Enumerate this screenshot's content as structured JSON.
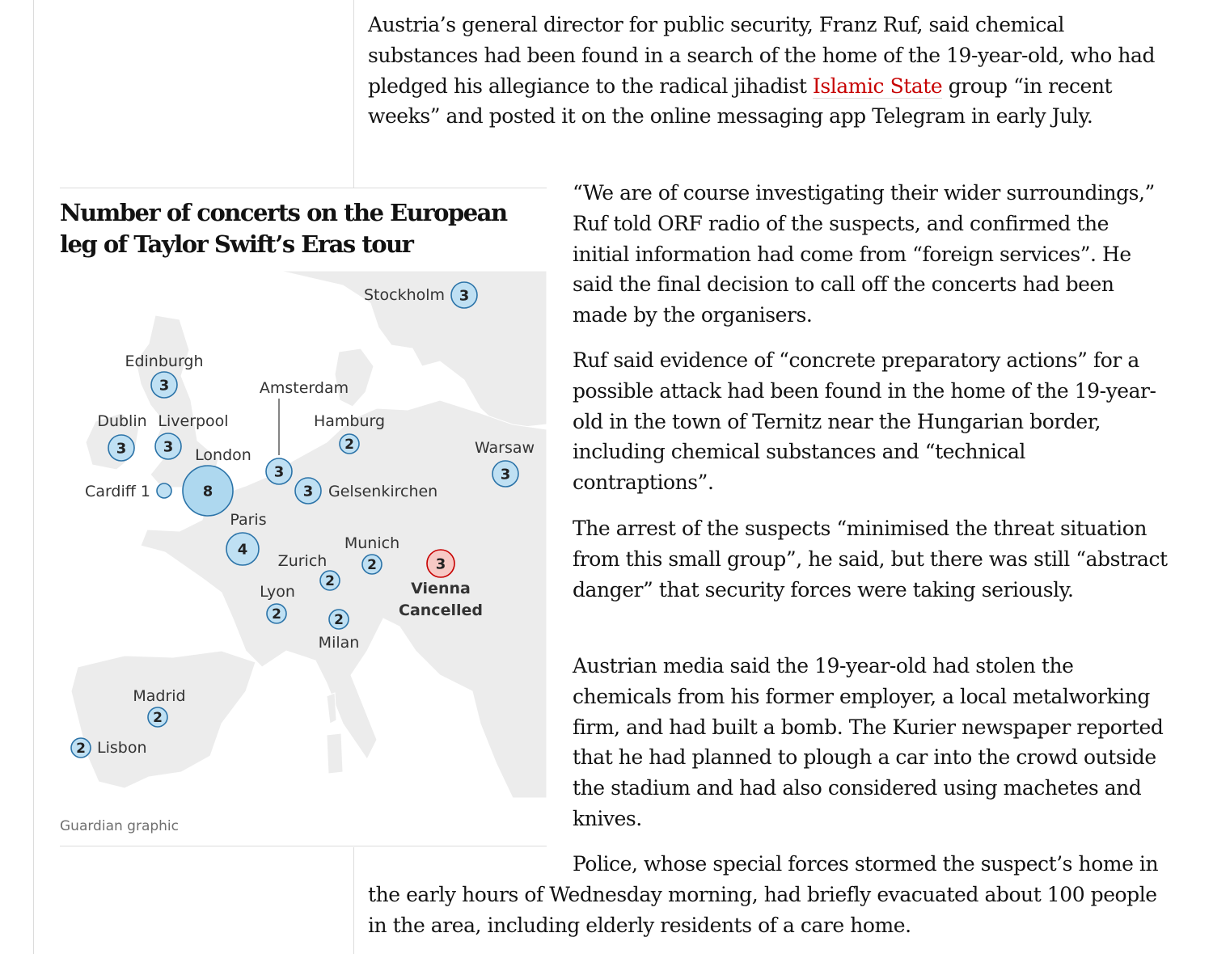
{
  "article": {
    "p1_a": "Austria’s general director for public security, Franz Ruf, said chemical substances had been found in a search of the home of the 19-year-old, who had pledged his allegiance to the radical jihadist ",
    "p1_link": "Islamic State",
    "p1_b": " group “in recent weeks” and posted it on the online messaging app Telegram in early July.",
    "p2": "“We are of course investigating their wider surroundings,” Ruf told ORF radio of the suspects, and confirmed the initial information had come from “foreign services”. He said the final decision to call off the concerts had been made by the organisers.",
    "p3": "Ruf said evidence of “concrete preparatory actions” for a possible attack had been found in the home of the 19-year-old in the town of Ternitz near the Hungarian border, including chemical substances and “technical contraptions”.",
    "p4": "The arrest of the suspects “minimised the threat situation from this small group”, he said, but there was still “abstract danger” that security forces were taking seriously.",
    "p5": "Austrian media said the 19-year-old had stolen the chemicals from his former employer, a local metalworking firm, and had built a bomb. The Kurier newspaper reported that he had planned to plough a car into the crowd outside the stadium and had also considered using machetes and knives.",
    "p6": "Police, whose special forces stormed the suspect’s home in the early hours of Wednesday morning, had briefly evacuated about 100 people in the area, including elderly residents of a care home."
  },
  "figure": {
    "title": "Number of concerts on the European leg of Taylor Swift’s Eras tour",
    "credit": "Guardian graphic",
    "colors": {
      "map_land": "#ececec",
      "circle_fill": "#bfe0f3",
      "circle_stroke": "#2b73a8",
      "cancelled_fill": "#f7c9c5",
      "cancelled_stroke": "#c70000",
      "link_red": "#c70000"
    },
    "cities": [
      {
        "name": "Stockholm",
        "count": "3",
        "cancelled": false
      },
      {
        "name": "Edinburgh",
        "count": "3",
        "cancelled": false
      },
      {
        "name": "Amsterdam",
        "count": "3",
        "cancelled": false
      },
      {
        "name": "Dublin",
        "count": "3",
        "cancelled": false
      },
      {
        "name": "Liverpool",
        "count": "3",
        "cancelled": false
      },
      {
        "name": "Hamburg",
        "count": "2",
        "cancelled": false
      },
      {
        "name": "Warsaw",
        "count": "3",
        "cancelled": false
      },
      {
        "name": "London",
        "count": "8",
        "cancelled": false
      },
      {
        "name": "Cardiff 1",
        "count": "",
        "cancelled": false
      },
      {
        "name": "Gelsenkirchen",
        "count": "3",
        "cancelled": false
      },
      {
        "name": "Paris",
        "count": "4",
        "cancelled": false
      },
      {
        "name": "Munich",
        "count": "2",
        "cancelled": false
      },
      {
        "name": "Zurich",
        "count": "2",
        "cancelled": false
      },
      {
        "name": "Vienna",
        "note": "Cancelled",
        "count": "3",
        "cancelled": true
      },
      {
        "name": "Lyon",
        "count": "2",
        "cancelled": false
      },
      {
        "name": "Milan",
        "count": "2",
        "cancelled": false
      },
      {
        "name": "Madrid",
        "count": "2",
        "cancelled": false
      },
      {
        "name": "Lisbon",
        "count": "2",
        "cancelled": false
      }
    ]
  }
}
